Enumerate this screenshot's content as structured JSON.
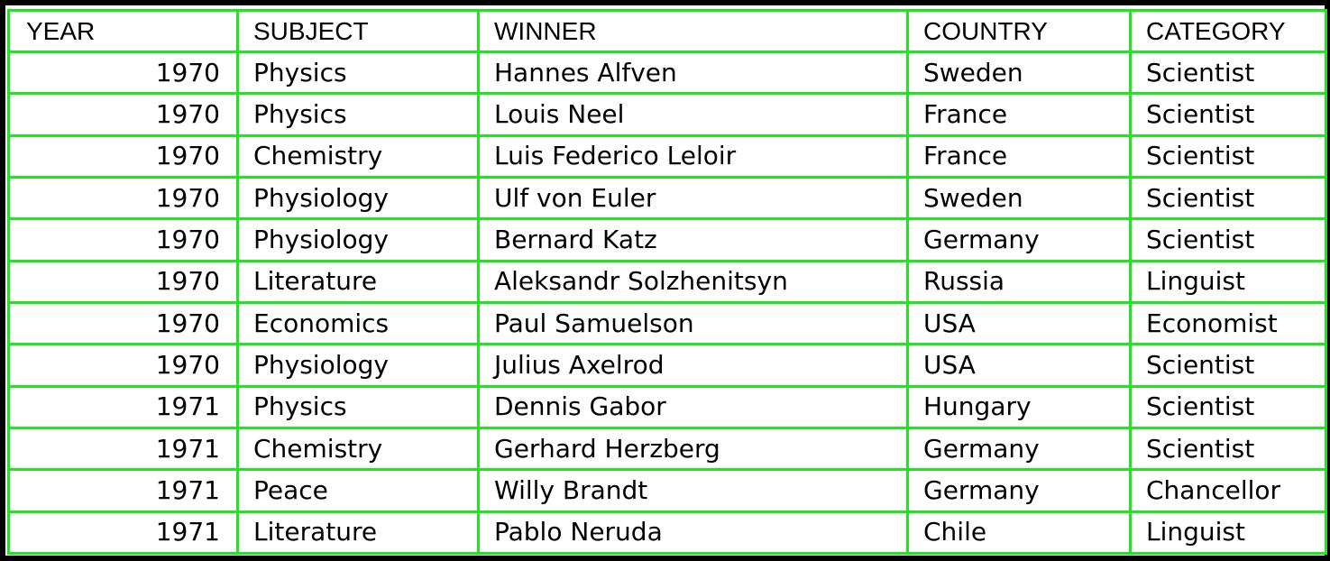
{
  "headers": {
    "year": "YEAR",
    "subject": "SUBJECT",
    "winner": "WINNER",
    "country": "COUNTRY",
    "category": "CATEGORY"
  },
  "rows": [
    {
      "year": "1970",
      "subject": "Physics",
      "winner": "Hannes Alfven",
      "country": "Sweden",
      "category": "Scientist"
    },
    {
      "year": "1970",
      "subject": "Physics",
      "winner": "Louis Neel",
      "country": "France",
      "category": "Scientist"
    },
    {
      "year": "1970",
      "subject": "Chemistry",
      "winner": "Luis Federico Leloir",
      "country": "France",
      "category": "Scientist"
    },
    {
      "year": "1970",
      "subject": "Physiology",
      "winner": "Ulf von Euler",
      "country": "Sweden",
      "category": "Scientist"
    },
    {
      "year": "1970",
      "subject": "Physiology",
      "winner": "Bernard Katz",
      "country": "Germany",
      "category": "Scientist"
    },
    {
      "year": "1970",
      "subject": "Literature",
      "winner": "Aleksandr Solzhenitsyn",
      "country": "Russia",
      "category": "Linguist"
    },
    {
      "year": "1970",
      "subject": "Economics",
      "winner": "Paul Samuelson",
      "country": "USA",
      "category": "Economist"
    },
    {
      "year": "1970",
      "subject": "Physiology",
      "winner": "Julius Axelrod",
      "country": "USA",
      "category": "Scientist"
    },
    {
      "year": "1971",
      "subject": "Physics",
      "winner": "Dennis Gabor",
      "country": "Hungary",
      "category": "Scientist"
    },
    {
      "year": "1971",
      "subject": "Chemistry",
      "winner": "Gerhard Herzberg",
      "country": "Germany",
      "category": "Scientist"
    },
    {
      "year": "1971",
      "subject": "Peace",
      "winner": "Willy Brandt",
      "country": "Germany",
      "category": "Chancellor"
    },
    {
      "year": "1971",
      "subject": "Literature",
      "winner": "Pablo Neruda",
      "country": "Chile",
      "category": "Linguist"
    }
  ],
  "colors": {
    "background": "#000000",
    "sheet": "#ffffff",
    "gridline": "#22e422",
    "text": "#000000"
  }
}
